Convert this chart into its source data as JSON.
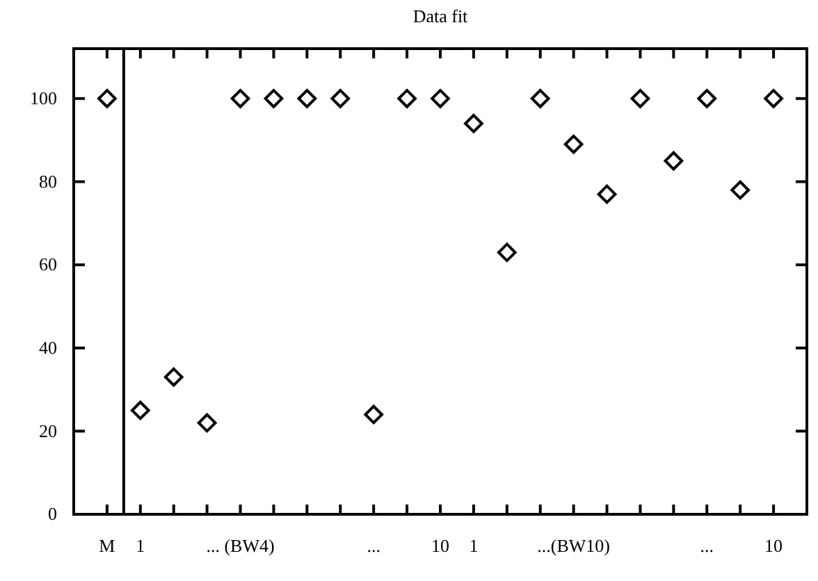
{
  "chart_data": {
    "type": "scatter",
    "title": "Data fit",
    "categories": [
      "M",
      "1",
      null,
      null,
      "... (BW4)",
      null,
      null,
      null,
      "...",
      null,
      "10",
      "1",
      null,
      null,
      "...(BW10)",
      null,
      null,
      null,
      "...",
      null,
      "10"
    ],
    "values": [
      100,
      25,
      33,
      22,
      100,
      100,
      100,
      100,
      24,
      100,
      100,
      94,
      63,
      100,
      89,
      77,
      100,
      85,
      100,
      78,
      100
    ],
    "color": "#000000",
    "marker": "diamond",
    "ylim": [
      0,
      112
    ],
    "yticks": [
      0,
      20,
      40,
      60,
      80,
      100
    ],
    "grid": false
  }
}
